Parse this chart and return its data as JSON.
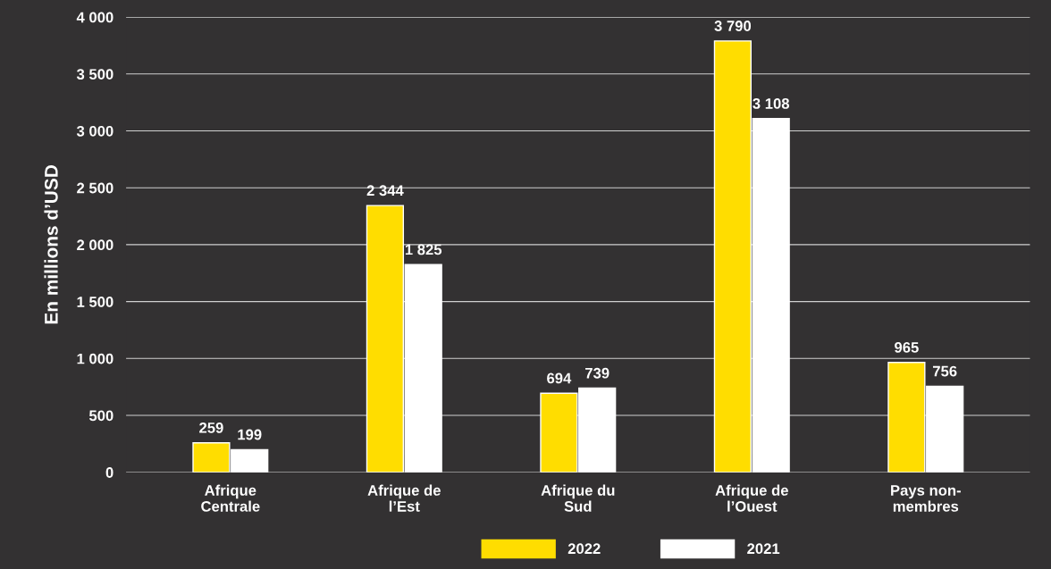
{
  "chart_data": {
    "type": "bar",
    "ylabel": "En millions d’USD",
    "categories": [
      "Afrique\nCentrale",
      "Afrique de\nl’Est",
      "Afrique du\nSud",
      "Afrique de\nl’Ouest",
      "Pays non-\nmembres"
    ],
    "series": [
      {
        "name": "2022",
        "color": "#ffdd00",
        "values": [
          259,
          2344,
          694,
          3790,
          965
        ],
        "value_labels": [
          "259",
          "2 344",
          "694",
          "3 790",
          "965"
        ]
      },
      {
        "name": "2021",
        "color": "#ffffff",
        "values": [
          199,
          1825,
          739,
          3108,
          756
        ],
        "value_labels": [
          "199",
          "1 825",
          "739",
          "3 108",
          "756"
        ]
      }
    ],
    "ylim": [
      0,
      4000
    ],
    "yticks": [
      0,
      {
        "value": 500,
        "label": "500"
      },
      {
        "value": 1000,
        "label": "1 000"
      },
      {
        "value": 1500,
        "label": "1 500"
      },
      {
        "value": 2000,
        "label": "2 000"
      },
      {
        "value": 2500,
        "label": "2 500"
      },
      {
        "value": 3000,
        "label": "3 000"
      },
      {
        "value": 3500,
        "label": "3 500"
      },
      {
        "value": 4000,
        "label": "4 000"
      }
    ],
    "grid": "y",
    "legend": "bottom"
  }
}
